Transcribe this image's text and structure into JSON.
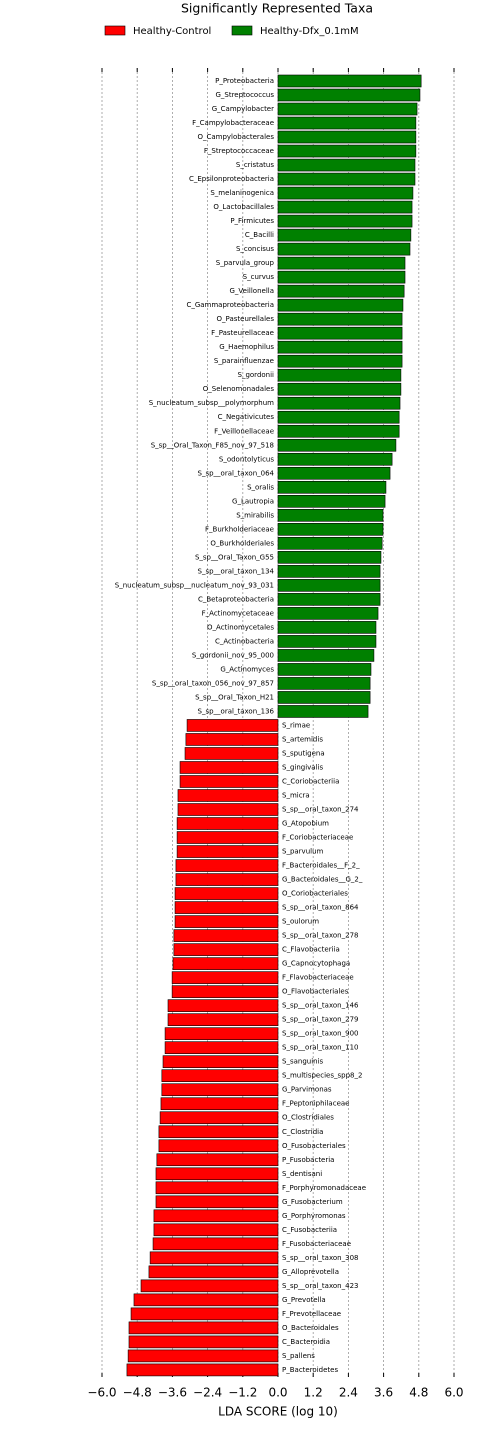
{
  "chart_data": {
    "type": "hbar",
    "title": "Significantly Represented Taxa",
    "xlabel": "LDA SCORE (log 10)",
    "categories": [
      "P_Proteobacteria",
      "G_Streptococcus",
      "G_Campylobacter",
      "F_Campylobacteraceae",
      "O_Campylobacterales",
      "F_Streptococcaceae",
      "S_cristatus",
      "C_Epsilonproteobacteria",
      "S_melaninogenica",
      "O_Lactobacillales",
      "P_Firmicutes",
      "C_Bacilli",
      "S_concisus",
      "S_parvula_group",
      "S_curvus",
      "G_Veillonella",
      "C_Gammaproteobacteria",
      "O_Pasteurellales",
      "F_Pasteurellaceae",
      "G_Haemophilus",
      "S_parainfluenzae",
      "S_gordonii",
      "O_Selenomonadales",
      "S_nucleatum_subsp__polymorphum",
      "C_Negativicutes",
      "F_Veillonellaceae",
      "S_sp__Oral_Taxon_F85_nov_97_518",
      "S_odontolyticus",
      "S_sp__oral_taxon_064",
      "S_oralis",
      "G_Lautropia",
      "S_mirabilis",
      "F_Burkholderiaceae",
      "O_Burkholderiales",
      "S_sp__Oral_Taxon_G55",
      "S_sp__oral_taxon_134",
      "S_nucleatum_subsp__nucleatum_nov_93_031",
      "C_Betaproteobacteria",
      "F_Actinomycetaceae",
      "O_Actinomycetales",
      "C_Actinobacteria",
      "S_gordonii_nov_95_000",
      "G_Actinomyces",
      "S_sp__oral_taxon_056_nov_97_857",
      "S_sp__Oral_Taxon_H21",
      "S_sp__oral_taxon_136",
      "S_rimae",
      "S_artemidis",
      "S_sputigena",
      "S_gingivalis",
      "C_Coriobacteriia",
      "S_micra",
      "S_sp__oral_taxon_274",
      "G_Atopobium",
      "F_Coriobacteriaceae",
      "S_parvulum",
      "F_Bacteroidales__F_2_",
      "G_Bacteroidales__G_2_",
      "O_Coriobacteriales",
      "S_sp__oral_taxon_864",
      "S_oulorum",
      "S_sp__oral_taxon_278",
      "C_Flavobacteriia",
      "G_Capnocytophaga",
      "F_Flavobacteriaceae",
      "O_Flavobacteriales",
      "S_sp__oral_taxon_146",
      "S_sp__oral_taxon_279",
      "S_sp__oral_taxon_900",
      "S_sp__oral_taxon_110",
      "S_sanguinis",
      "S_multispecies_spp8_2",
      "G_Parvimonas",
      "F_Peptoniphilaceae",
      "O_Clostridiales",
      "C_Clostridia",
      "O_Fusobacteriales",
      "P_Fusobacteria",
      "S_dentisani",
      "F_Porphyromonadaceae",
      "G_Fusobacterium",
      "G_Porphyromonas",
      "C_Fusobacteriia",
      "F_Fusobacteriaceae",
      "S_sp__oral_taxon_308",
      "G_Alloprevotella",
      "S_sp__oral_taxon_423",
      "G_Prevotella",
      "F_Prevotellaceae",
      "O_Bacteroidales",
      "C_Bacteroidia",
      "S_pallens",
      "P_Bacteroidetes"
    ],
    "series": [
      {
        "name": "Healthy-Control",
        "color": "#ff0000",
        "values": [
          null,
          null,
          null,
          null,
          null,
          null,
          null,
          null,
          null,
          null,
          null,
          null,
          null,
          null,
          null,
          null,
          null,
          null,
          null,
          null,
          null,
          null,
          null,
          null,
          null,
          null,
          null,
          null,
          null,
          null,
          null,
          null,
          null,
          null,
          null,
          null,
          null,
          null,
          null,
          null,
          null,
          null,
          null,
          null,
          null,
          null,
          -3.1,
          -3.14,
          -3.17,
          -3.34,
          -3.34,
          -3.41,
          -3.41,
          -3.44,
          -3.44,
          -3.44,
          -3.48,
          -3.48,
          -3.51,
          -3.51,
          -3.51,
          -3.55,
          -3.55,
          -3.58,
          -3.61,
          -3.61,
          -3.75,
          -3.75,
          -3.85,
          -3.85,
          -3.92,
          -3.96,
          -3.96,
          -3.99,
          -4.02,
          -4.06,
          -4.06,
          -4.13,
          -4.16,
          -4.16,
          -4.16,
          -4.23,
          -4.23,
          -4.26,
          -4.36,
          -4.4,
          -4.67,
          -4.91,
          -5.01,
          -5.08,
          -5.08,
          -5.11,
          -5.15
        ]
      },
      {
        "name": "Healthy-Dfx_0.1mM",
        "color": "#008000",
        "values": [
          4.88,
          4.84,
          4.74,
          4.7,
          4.7,
          4.7,
          4.67,
          4.67,
          4.6,
          4.57,
          4.57,
          4.53,
          4.5,
          4.33,
          4.33,
          4.3,
          4.26,
          4.23,
          4.23,
          4.23,
          4.23,
          4.19,
          4.19,
          4.16,
          4.13,
          4.13,
          4.02,
          3.89,
          3.82,
          3.68,
          3.65,
          3.58,
          3.58,
          3.55,
          3.51,
          3.48,
          3.48,
          3.48,
          3.41,
          3.34,
          3.34,
          3.27,
          3.17,
          3.14,
          3.14,
          3.07,
          null,
          null,
          null,
          null,
          null,
          null,
          null,
          null,
          null,
          null,
          null,
          null,
          null,
          null,
          null,
          null,
          null,
          null,
          null,
          null,
          null,
          null,
          null,
          null,
          null,
          null,
          null,
          null,
          null,
          null,
          null,
          null,
          null,
          null,
          null,
          null,
          null,
          null,
          null,
          null,
          null,
          null,
          null,
          null,
          null,
          null,
          null
        ]
      }
    ],
    "xlim": [
      -6.0,
      6.0
    ],
    "xticks": [
      {
        "value": -6.0,
        "label": "−6.0"
      },
      {
        "value": -4.8,
        "label": "−4.8"
      },
      {
        "value": -3.6,
        "label": "−3.6"
      },
      {
        "value": -2.4,
        "label": "−2.4"
      },
      {
        "value": -1.2,
        "label": "−1.2"
      },
      {
        "value": 0,
        "label": "0.0"
      },
      {
        "value": 1.2,
        "label": "1.2"
      },
      {
        "value": 2.4,
        "label": "2.4"
      },
      {
        "value": 3.6,
        "label": "3.6"
      },
      {
        "value": 4.8,
        "label": "4.8"
      },
      {
        "value": 6.0,
        "label": "6.0"
      }
    ],
    "grid": true
  }
}
